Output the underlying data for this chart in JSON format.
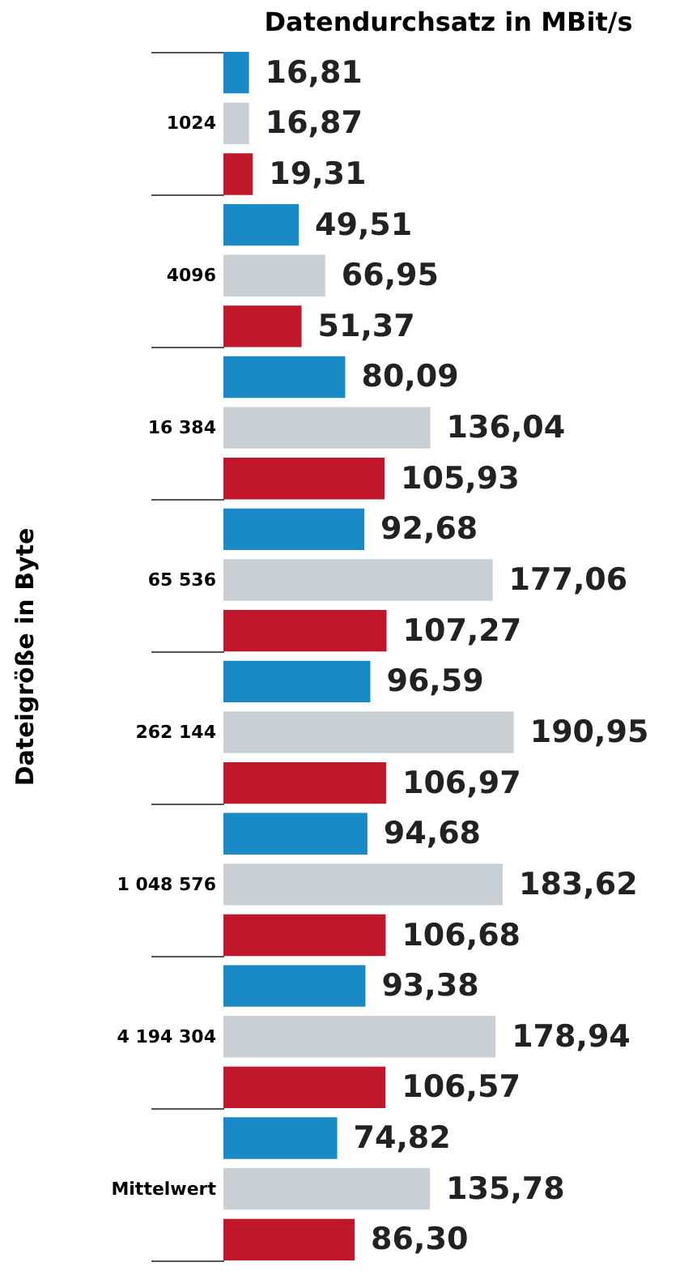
{
  "chart_data": {
    "type": "bar",
    "orientation": "horizontal",
    "title": "Datendurchsatz in MBit/s",
    "ylabel": "Dateigröße in Byte",
    "categories": [
      "1024",
      "4096",
      "16 384",
      "65 536",
      "262 144",
      "1 048 576",
      "4 194 304",
      "Mittelwert"
    ],
    "series": [
      {
        "color": "#1a8ac6",
        "values": [
          16.81,
          49.51,
          80.09,
          92.68,
          96.59,
          94.68,
          93.38,
          74.82
        ],
        "value_labels": [
          "16,81",
          "49,51",
          "80,09",
          "92,68",
          "96,59",
          "94,68",
          "93,38",
          "74,82"
        ]
      },
      {
        "color": "#c8d0d6",
        "values": [
          16.87,
          66.95,
          136.04,
          177.06,
          190.95,
          183.62,
          178.94,
          135.78
        ],
        "value_labels": [
          "16,87",
          "66,95",
          "136,04",
          "177,06",
          "190,95",
          "183,62",
          "178,94",
          "135,78"
        ]
      },
      {
        "color": "#c0182a",
        "values": [
          19.31,
          51.37,
          105.93,
          107.27,
          106.97,
          106.68,
          106.57,
          86.3
        ],
        "value_labels": [
          "19,31",
          "51,37",
          "105,93",
          "107,27",
          "106,97",
          "106,68",
          "106,57",
          "86,30"
        ]
      }
    ],
    "legend": false,
    "grid": false
  }
}
